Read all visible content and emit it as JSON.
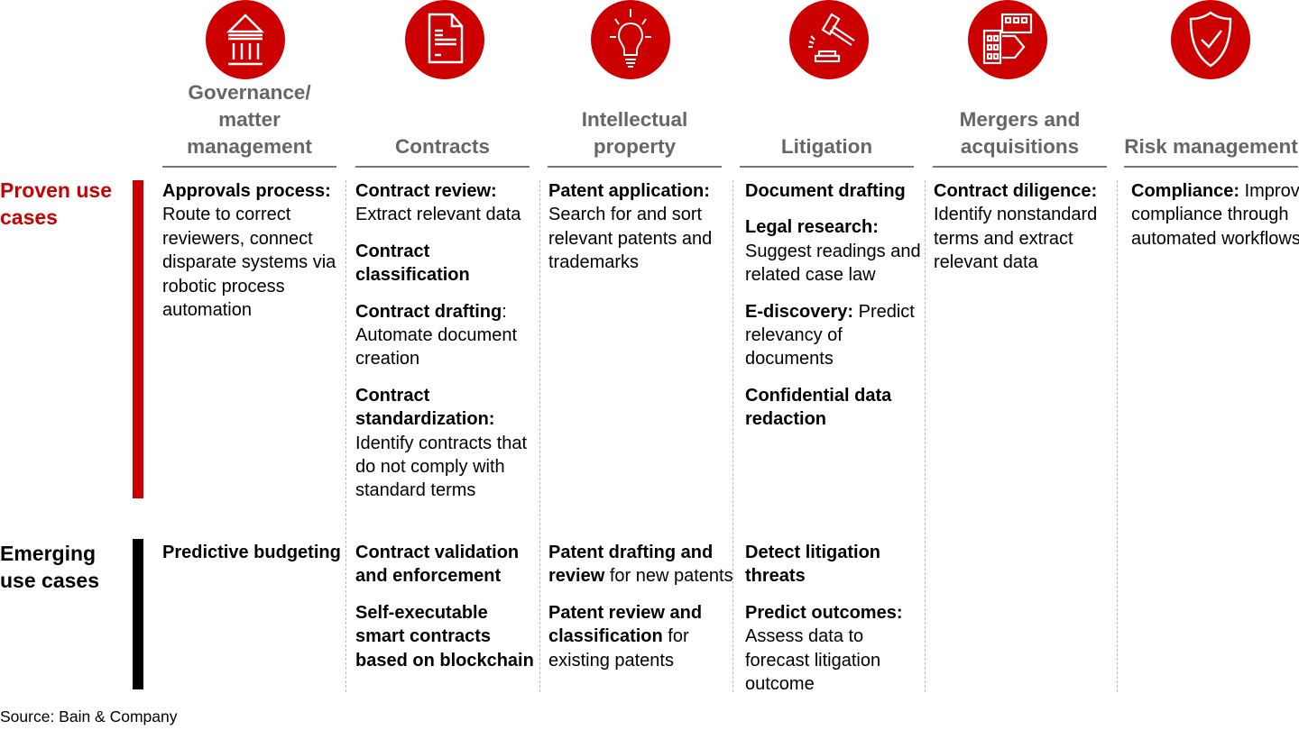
{
  "colors": {
    "accent": "#cc0000",
    "header_text": "#666666",
    "emerging_bar": "#000000"
  },
  "columns": [
    {
      "icon": "bank-building-icon",
      "title": "Governance/ matter management"
    },
    {
      "icon": "document-icon",
      "title": "Contracts"
    },
    {
      "icon": "lightbulb-icon",
      "title": "Intellectual property"
    },
    {
      "icon": "gavel-icon",
      "title": "Litigation"
    },
    {
      "icon": "buildings-arrow-icon",
      "title": "Mergers and acquisitions"
    },
    {
      "icon": "shield-check-icon",
      "title": "Risk management"
    }
  ],
  "rows": [
    {
      "label": "Proven use cases",
      "cells": [
        [
          {
            "b": "Approvals process:",
            "t": " Route to correct reviewers, connect disparate systems via robotic process automation"
          }
        ],
        [
          {
            "b": "Contract review:",
            "t": " Extract relevant data"
          },
          {
            "b": "Contract classification",
            "t": ""
          },
          {
            "b": "Contract drafting",
            "t": ": Automate document creation"
          },
          {
            "b": "Contract standardization:",
            "t": " Identify contracts that do not comply with standard terms"
          }
        ],
        [
          {
            "b": "Patent application:",
            "t": " Search for and sort relevant patents and trademarks"
          }
        ],
        [
          {
            "b": "Document drafting",
            "t": ""
          },
          {
            "b": "Legal research:",
            "t": " Suggest readings and related case law"
          },
          {
            "b": "E-discovery:",
            "t": " Predict relevancy of documents"
          },
          {
            "b": "Confidential data redaction",
            "t": ""
          }
        ],
        [
          {
            "b": "Contract diligence:",
            "t": " Identify nonstandard terms and extract relevant data"
          }
        ],
        [
          {
            "b": "Compliance:",
            "t": " Improve compliance through automated workflows"
          }
        ]
      ]
    },
    {
      "label": "Emerging use cases",
      "cells": [
        [
          {
            "b": "Predictive budgeting",
            "t": ""
          }
        ],
        [
          {
            "b": "Contract validation and enforcement",
            "t": ""
          },
          {
            "b": "Self-executable smart contracts based on blockchain",
            "t": ""
          }
        ],
        [
          {
            "b": "Patent drafting and review",
            "t": " for new patents"
          },
          {
            "b": "Patent review and classification",
            "t": " for existing patents"
          }
        ],
        [
          {
            "b": "Detect litigation threats",
            "t": ""
          },
          {
            "b": "Predict outcomes:",
            "t": " Assess data to forecast litigation outcome"
          }
        ],
        [],
        []
      ]
    }
  ],
  "source": "Source: Bain & Company"
}
